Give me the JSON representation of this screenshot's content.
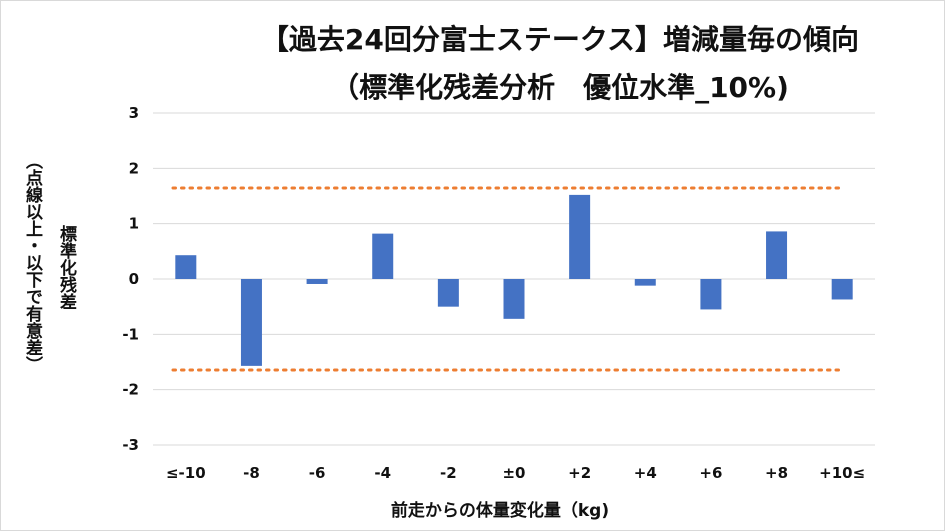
{
  "chart_data": {
    "type": "bar",
    "title": "【過去24回分富士ステークス】増減量毎の傾向",
    "subtitle": "（標準化残差分析　優位水準_10%)",
    "ylabel_main": "標準化残差",
    "ylabel_sub": "（点線以上・以下で有意差）",
    "xlabel": "前走からの体量変化量（kg)",
    "categories": [
      "≤-10",
      "-8",
      "-6",
      "-4",
      "-2",
      "±0",
      "+2",
      "+4",
      "+6",
      "+8",
      "+10≤"
    ],
    "values": [
      0.43,
      -1.57,
      -0.09,
      0.82,
      -0.5,
      -0.72,
      1.52,
      -0.12,
      -0.55,
      0.86,
      -0.37
    ],
    "ylim": [
      -3,
      3
    ],
    "yticks": [
      "3",
      "2",
      "1",
      "0",
      "-1",
      "-2",
      "-3"
    ],
    "threshold_upper": 1.645,
    "threshold_lower": -1.645,
    "grid": true,
    "bar_color": "#4472c4",
    "threshold_color": "#ed7d31",
    "grid_color": "#d9d9d9"
  }
}
